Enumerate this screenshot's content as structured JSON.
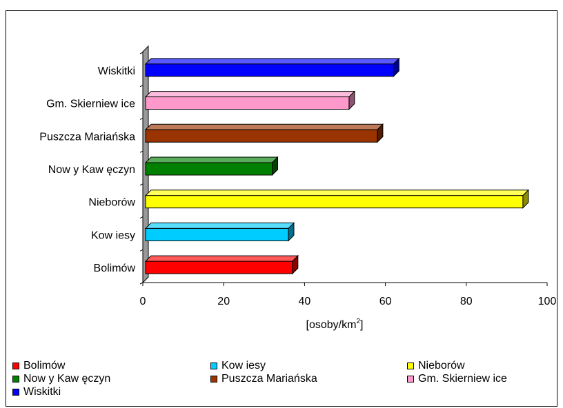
{
  "chart_data": {
    "type": "bar",
    "orientation": "horizontal",
    "three_d": true,
    "title": "",
    "xlabel_base": "[osoby/km",
    "xlabel_sup": "2",
    "xlabel_end": "]",
    "ylabel": "",
    "xlim": [
      0,
      100
    ],
    "xticks": [
      "0",
      "20",
      "40",
      "60",
      "80",
      "100"
    ],
    "grid": false,
    "legend_position": "bottom",
    "categories": [
      "Bolimów",
      "Kow iesy",
      "Nieborów",
      "Now y Kaw ęczyn",
      "Puszcza Mariańska",
      "Gm. Skierniew ice",
      "Wiskitki"
    ],
    "values": [
      37,
      36,
      94,
      32,
      58,
      51,
      62
    ],
    "colors": [
      "#ff0000",
      "#00ccff",
      "#ffff00",
      "#008000",
      "#993300",
      "#ff99cc",
      "#0000ff"
    ],
    "legend": [
      {
        "label": "Bolimów",
        "color": "#ff0000"
      },
      {
        "label": "Kow iesy",
        "color": "#00ccff"
      },
      {
        "label": "Nieborów",
        "color": "#ffff00"
      },
      {
        "label": "Now y Kaw ęczyn",
        "color": "#008000"
      },
      {
        "label": "Puszcza Mariańska",
        "color": "#993300"
      },
      {
        "label": "Gm. Skierniew ice",
        "color": "#ff99cc"
      },
      {
        "label": "Wiskitki",
        "color": "#0000ff"
      }
    ]
  }
}
